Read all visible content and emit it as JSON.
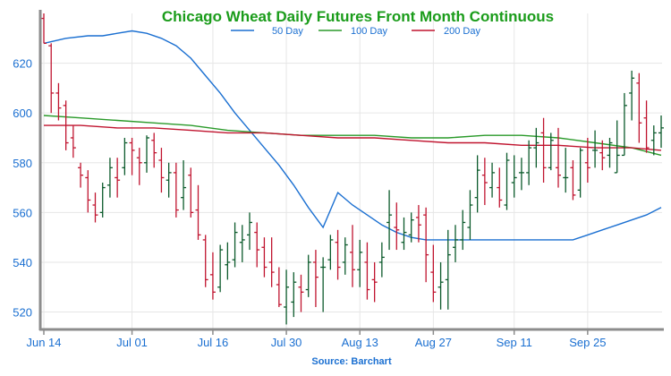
{
  "chart_data": {
    "type": "ohlc",
    "title": "Chicago Wheat Daily Futures Front Month Continuous",
    "source": "Source: Barchart",
    "ylim": [
      513,
      640
    ],
    "yticks": [
      520,
      540,
      560,
      580,
      600,
      620
    ],
    "xticks": [
      "Jun 14",
      "Jul 01",
      "Jul 16",
      "Jul 30",
      "Aug 13",
      "Aug 27",
      "Sep 11",
      "Sep 25"
    ],
    "xtick_index": [
      0,
      12,
      23,
      33,
      43,
      53,
      64,
      74
    ],
    "grid": true,
    "legend_position": "top-center",
    "colors": {
      "up": "#0b5a2b",
      "down": "#c0142f",
      "ma50": "#1a6fd1",
      "ma100": "#2a9a2a",
      "ma200": "#c0142f",
      "title": "#1a9c1a",
      "text": "#1a6fd1"
    },
    "series": [
      {
        "name": "50 Day",
        "color": "#1a6fd1",
        "x": [
          0,
          3,
          6,
          8,
          10,
          12,
          14,
          16,
          18,
          20,
          22,
          24,
          26,
          28,
          30,
          32,
          34,
          36,
          38,
          40,
          42,
          44,
          46,
          48,
          50,
          52,
          54,
          56,
          58,
          60,
          62,
          64,
          66,
          68,
          70,
          72,
          74,
          76,
          78,
          80,
          82,
          84
        ],
        "values": [
          628,
          630,
          631,
          631,
          632,
          633,
          632,
          630,
          627,
          622,
          615,
          608,
          600,
          593,
          586,
          579,
          571,
          562,
          554,
          568,
          563,
          559,
          555,
          552,
          550,
          549,
          549,
          549,
          549,
          549,
          549,
          549,
          549,
          549,
          549,
          549,
          551,
          553,
          555,
          557,
          559,
          562
        ]
      },
      {
        "name": "100 Day",
        "color": "#2a9a2a",
        "x": [
          0,
          5,
          10,
          15,
          20,
          25,
          30,
          35,
          40,
          45,
          50,
          55,
          60,
          65,
          70,
          75,
          80,
          84
        ],
        "values": [
          599,
          598,
          597,
          596,
          595,
          593,
          592,
          591,
          591,
          591,
          590,
          590,
          591,
          591,
          590,
          588,
          586,
          583
        ]
      },
      {
        "name": "200 Day",
        "color": "#c0142f",
        "x": [
          0,
          5,
          10,
          15,
          20,
          25,
          30,
          35,
          40,
          45,
          50,
          55,
          60,
          65,
          70,
          75,
          80,
          84
        ],
        "values": [
          595,
          595,
          594,
          594,
          593,
          592,
          592,
          591,
          590,
          590,
          589,
          588,
          588,
          587,
          587,
          586,
          586,
          585
        ]
      }
    ],
    "ohlc": [
      [
        638,
        640,
        628,
        628
      ],
      [
        627,
        628,
        600,
        608
      ],
      [
        608,
        612,
        597,
        602
      ],
      [
        603,
        605,
        585,
        588
      ],
      [
        590,
        595,
        582,
        586
      ],
      [
        578,
        580,
        570,
        575
      ],
      [
        574,
        577,
        560,
        565
      ],
      [
        563,
        568,
        556,
        559
      ],
      [
        560,
        572,
        558,
        570
      ],
      [
        571,
        582,
        566,
        578
      ],
      [
        574,
        582,
        566,
        573
      ],
      [
        578,
        590,
        575,
        588
      ],
      [
        588,
        590,
        575,
        585
      ],
      [
        582,
        586,
        571,
        580
      ],
      [
        580,
        591,
        576,
        590
      ],
      [
        589,
        592,
        578,
        584
      ],
      [
        581,
        586,
        568,
        574
      ],
      [
        573,
        580,
        566,
        576
      ],
      [
        576,
        580,
        558,
        561
      ],
      [
        566,
        581,
        561,
        570
      ],
      [
        575,
        578,
        558,
        560
      ],
      [
        561,
        571,
        549,
        551
      ],
      [
        549,
        551,
        530,
        533
      ],
      [
        535,
        544,
        525,
        528
      ],
      [
        530,
        547,
        528,
        545
      ],
      [
        539,
        548,
        533,
        540
      ],
      [
        541,
        556,
        538,
        552
      ],
      [
        548,
        555,
        540,
        549
      ],
      [
        551,
        560,
        545,
        556
      ],
      [
        552,
        556,
        538,
        545
      ],
      [
        546,
        550,
        534,
        538
      ],
      [
        540,
        550,
        530,
        536
      ],
      [
        531,
        538,
        522,
        523
      ],
      [
        522,
        537,
        515,
        530
      ],
      [
        524,
        536,
        518,
        532
      ],
      [
        530,
        535,
        520,
        528
      ],
      [
        529,
        543,
        526,
        540
      ],
      [
        540,
        545,
        522,
        534
      ],
      [
        538,
        542,
        520,
        538
      ],
      [
        541,
        551,
        537,
        549
      ],
      [
        548,
        553,
        533,
        538
      ],
      [
        540,
        550,
        535,
        547
      ],
      [
        544,
        555,
        530,
        537
      ],
      [
        537,
        549,
        530,
        544
      ],
      [
        540,
        548,
        525,
        529
      ],
      [
        533,
        540,
        524,
        532
      ],
      [
        540,
        548,
        534,
        542
      ],
      [
        556,
        569,
        545,
        559
      ],
      [
        554,
        564,
        545,
        553
      ],
      [
        548,
        558,
        545,
        552
      ],
      [
        551,
        560,
        548,
        557
      ],
      [
        558,
        563,
        548,
        555
      ],
      [
        559,
        562,
        532,
        543
      ],
      [
        536,
        547,
        524,
        528
      ],
      [
        530,
        540,
        521,
        532
      ],
      [
        533,
        553,
        521,
        543
      ],
      [
        546,
        555,
        540,
        549
      ],
      [
        549,
        561,
        545,
        556
      ],
      [
        554,
        569,
        549,
        563
      ],
      [
        566,
        583,
        560,
        577
      ],
      [
        575,
        582,
        563,
        572
      ],
      [
        570,
        580,
        566,
        576
      ],
      [
        570,
        578,
        562,
        565
      ],
      [
        563,
        584,
        561,
        581
      ],
      [
        572,
        583,
        566,
        574
      ],
      [
        576,
        582,
        569,
        576
      ],
      [
        576,
        589,
        571,
        586
      ],
      [
        586,
        594,
        578,
        588
      ],
      [
        592,
        598,
        572,
        578
      ],
      [
        578,
        592,
        577,
        589
      ],
      [
        578,
        594,
        570,
        575
      ],
      [
        574,
        586,
        568,
        574
      ],
      [
        578,
        581,
        565,
        567
      ],
      [
        569,
        586,
        566,
        585
      ],
      [
        580,
        590,
        572,
        578
      ],
      [
        585,
        593,
        578,
        585
      ],
      [
        584,
        589,
        577,
        582
      ],
      [
        583,
        590,
        578,
        588
      ],
      [
        576,
        597,
        576,
        583
      ],
      [
        583,
        608,
        583,
        603
      ],
      [
        608,
        617,
        597,
        614
      ],
      [
        612,
        616,
        588,
        596
      ],
      [
        598,
        605,
        584,
        586
      ],
      [
        589,
        595,
        583,
        592
      ],
      [
        592,
        599,
        586,
        594
      ]
    ]
  }
}
